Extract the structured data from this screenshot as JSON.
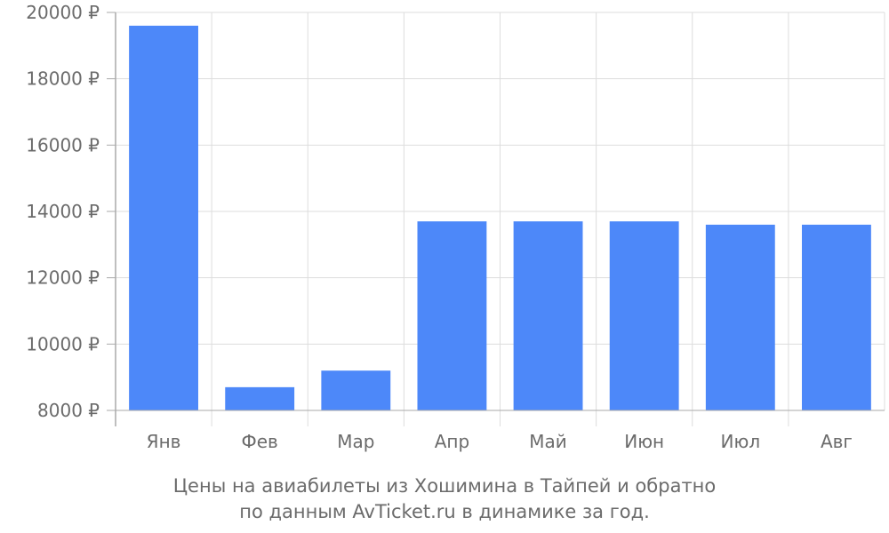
{
  "chart_data": {
    "type": "bar",
    "categories": [
      "Янв",
      "Фев",
      "Мар",
      "Апр",
      "Май",
      "Июн",
      "Июл",
      "Авг"
    ],
    "values": [
      19600,
      8700,
      9200,
      13700,
      13700,
      13700,
      13600,
      13600
    ],
    "ylim": [
      8000,
      20000
    ],
    "y_ticks": [
      "8000 ₽",
      "10000 ₽",
      "12000 ₽",
      "14000 ₽",
      "16000 ₽",
      "18000 ₽",
      "20000 ₽"
    ],
    "y_tick_values": [
      8000,
      10000,
      12000,
      14000,
      16000,
      18000,
      20000
    ],
    "grid": true,
    "bar_color": "#4d88f9",
    "grid_color": "#dddddd",
    "axis_color": "#aaaaaa",
    "caption_line1": "Цены на авиабилеты из Хошимина в Тайпей и обратно",
    "caption_line2": "по данным AvTicket.ru в динамике за год."
  }
}
